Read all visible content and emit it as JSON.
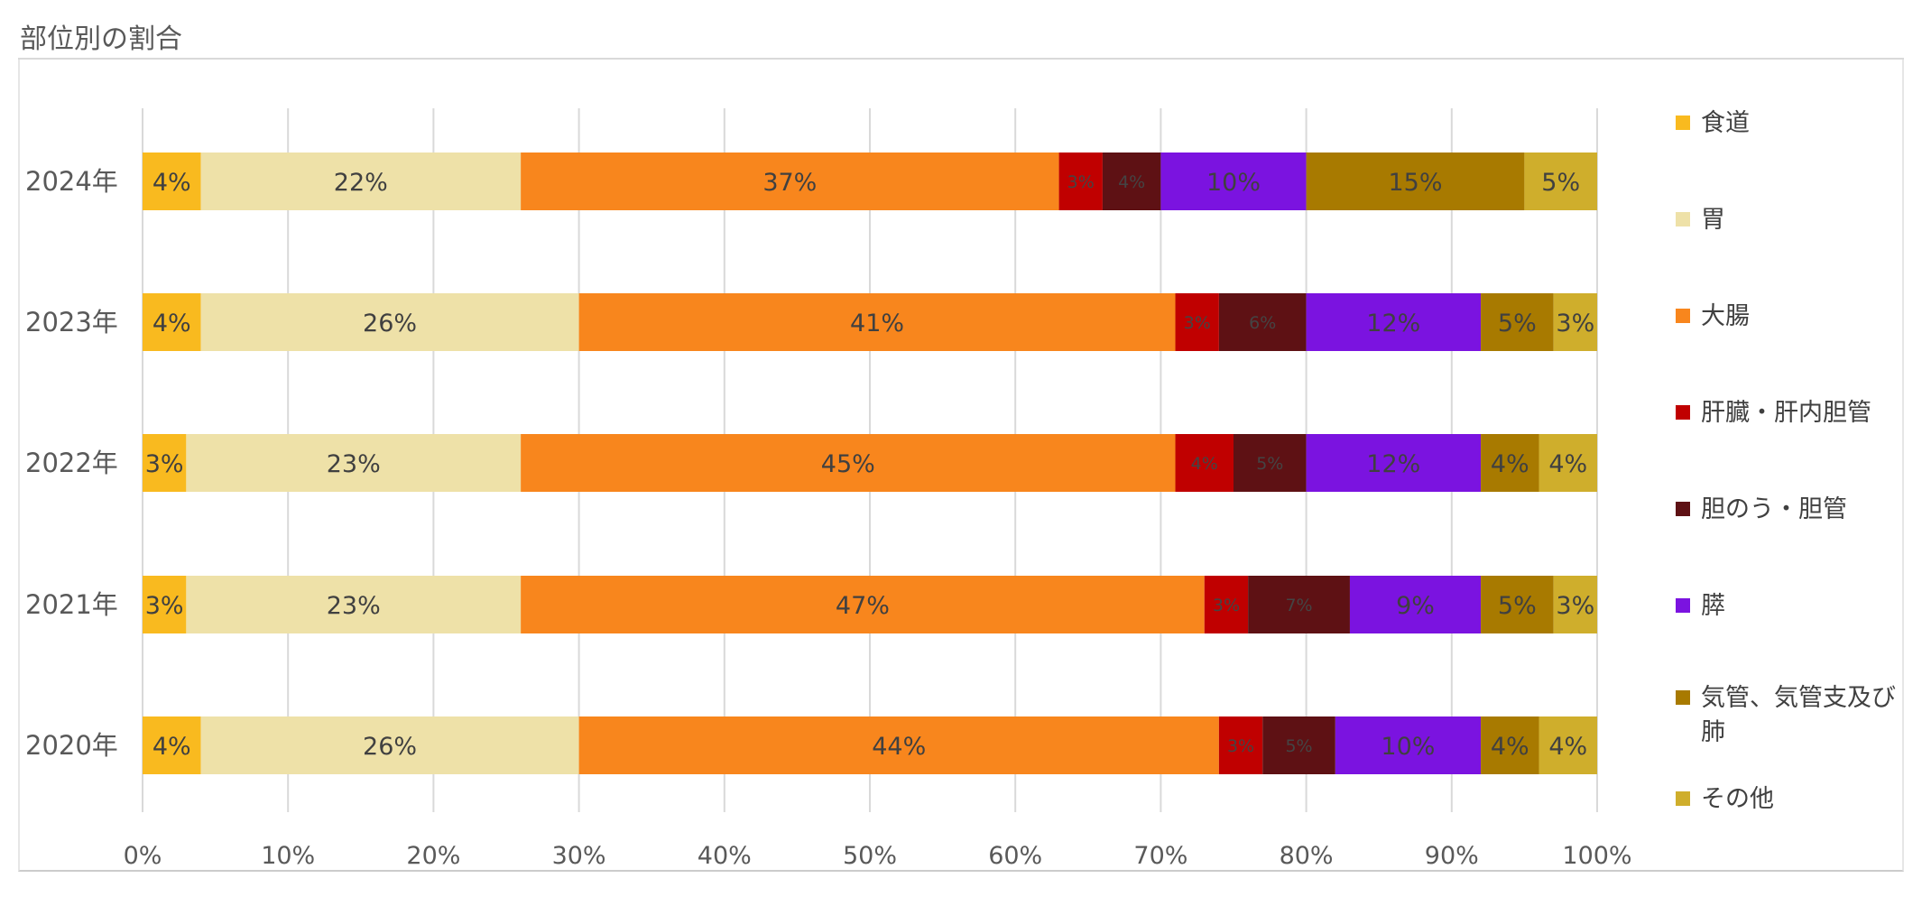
{
  "chart_title": "部位別の割合",
  "chart_data": {
    "type": "bar",
    "orientation": "horizontal",
    "stacked": "percent",
    "title": "部位別の割合",
    "categories": [
      "2024年",
      "2023年",
      "2022年",
      "2021年",
      "2020年"
    ],
    "x_ticks": [
      "0%",
      "10%",
      "20%",
      "30%",
      "40%",
      "50%",
      "60%",
      "70%",
      "80%",
      "90%",
      "100%"
    ],
    "xlim": [
      0,
      100
    ],
    "grid": "vertical",
    "legend_position": "right",
    "series": [
      {
        "name": "食道",
        "color": "#F9BA1F",
        "values": [
          4,
          4,
          3,
          3,
          4
        ]
      },
      {
        "name": "胃",
        "color": "#EEE1A8",
        "values": [
          22,
          26,
          23,
          23,
          26
        ]
      },
      {
        "name": "大腸",
        "color": "#F8861D",
        "values": [
          37,
          41,
          45,
          47,
          44
        ]
      },
      {
        "name": "肝臓・肝内胆管",
        "color": "#C00000",
        "values": [
          3,
          3,
          4,
          3,
          3
        ]
      },
      {
        "name": "胆のう・胆管",
        "color": "#5E1114",
        "values": [
          4,
          6,
          5,
          7,
          5
        ]
      },
      {
        "name": "膵",
        "color": "#7B13E0",
        "values": [
          10,
          12,
          12,
          9,
          10
        ]
      },
      {
        "name": "気管、気管支及び肺",
        "color": "#A87A00",
        "values": [
          15,
          5,
          4,
          5,
          4
        ]
      },
      {
        "name": "その他",
        "color": "#CFAE2C",
        "values": [
          5,
          3,
          4,
          3,
          4
        ]
      }
    ]
  }
}
